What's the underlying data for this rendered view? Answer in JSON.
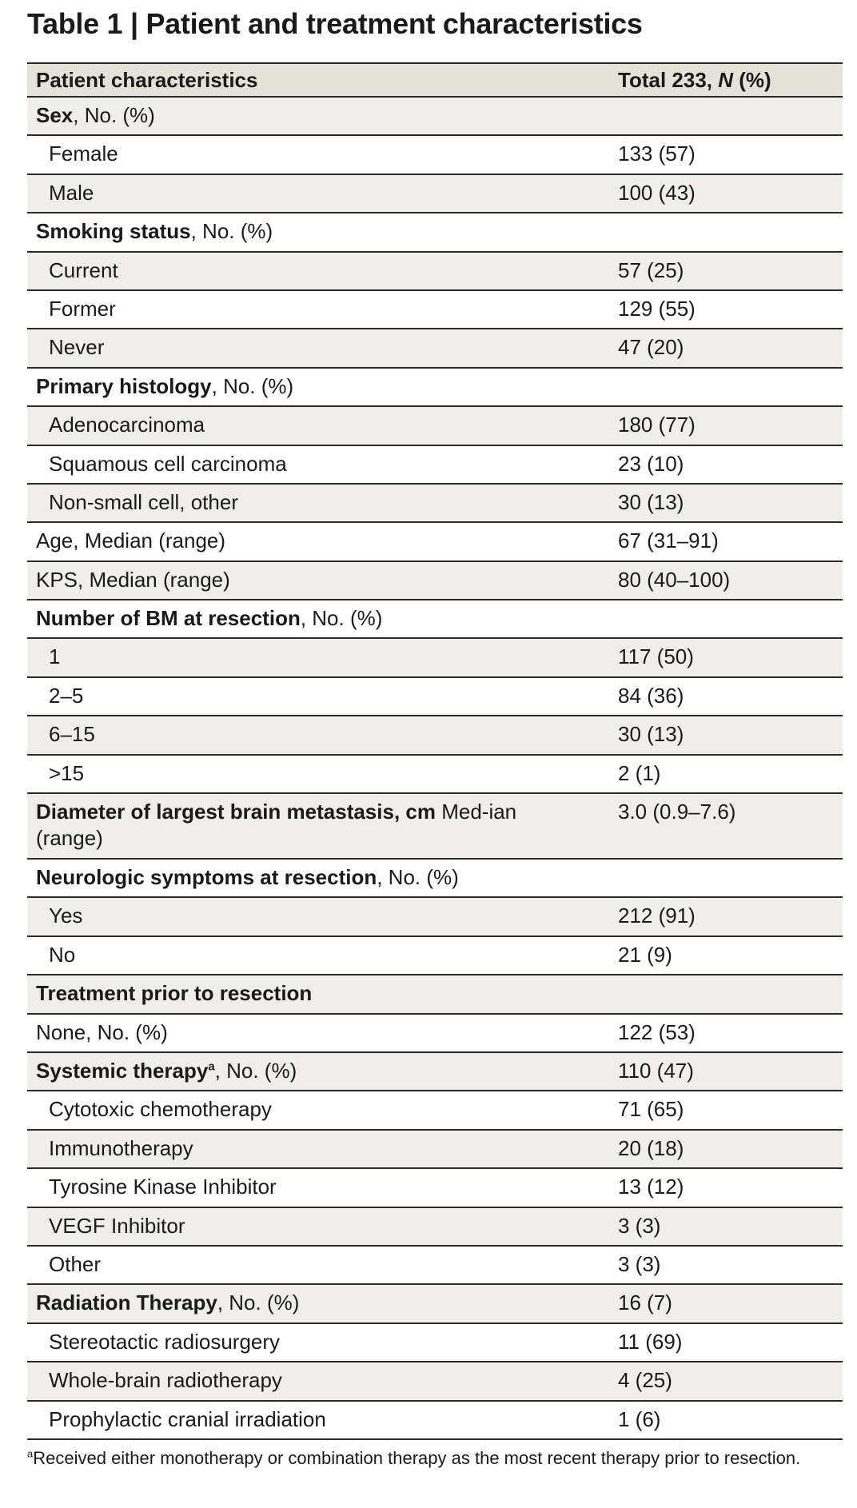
{
  "title": "Table 1 | Patient and treatment characteristics",
  "header": {
    "col1": "Patient characteristics",
    "col2_pre": "Total 233, ",
    "col2_italic": "N",
    "col2_post": " (%)"
  },
  "rows": [
    {
      "bold": "Sex",
      "text": ", No. (%)",
      "value": ""
    },
    {
      "text": "Female",
      "value": "133 (57)"
    },
    {
      "text": "Male",
      "value": "100 (43)"
    },
    {
      "bold": "Smoking status",
      "text": ", No. (%)",
      "value": ""
    },
    {
      "text": "Current",
      "value": "57 (25)"
    },
    {
      "text": "Former",
      "value": "129 (55)"
    },
    {
      "text": "Never",
      "value": "47 (20)"
    },
    {
      "bold": "Primary histology",
      "text": ", No. (%)",
      "value": ""
    },
    {
      "text": "Adenocarcinoma",
      "value": "180 (77)"
    },
    {
      "text": "Squamous cell carcinoma",
      "value": "23 (10)"
    },
    {
      "text": "Non-small cell, other",
      "value": "30 (13)"
    },
    {
      "text": "Age, Median (range)",
      "value": "67 (31–91)"
    },
    {
      "text": "KPS, Median (range)",
      "value": "80 (40–100)"
    },
    {
      "bold": "Number of BM at resection",
      "text": ", No. (%)",
      "value": ""
    },
    {
      "text": "1",
      "value": "117 (50)"
    },
    {
      "text": "2–5",
      "value": "84 (36)"
    },
    {
      "text": "6–15",
      "value": "30 (13)"
    },
    {
      "text": ">15",
      "value": "2 (1)"
    },
    {
      "bold": "Diameter of largest brain metastasis, cm",
      "text": " Med-ian (range)",
      "value": "3.0 (0.9–7.6)"
    },
    {
      "bold": "Neurologic symptoms at resection",
      "text": ", No. (%)",
      "value": ""
    },
    {
      "text": "Yes",
      "value": "212 (91)"
    },
    {
      "text": "No",
      "value": "21 (9)"
    },
    {
      "bold": "Treatment prior to resection",
      "text": "",
      "value": ""
    },
    {
      "text": "None, No. (%)",
      "value": "122 (53)"
    },
    {
      "bold": "Systemic therapy",
      "sup": "a",
      "text": ", No. (%)",
      "value": "110 (47)"
    },
    {
      "text": "Cytotoxic chemotherapy",
      "value": "71 (65)"
    },
    {
      "text": "Immunotherapy",
      "value": "20 (18)"
    },
    {
      "text": "Tyrosine Kinase Inhibitor",
      "value": "13 (12)"
    },
    {
      "text": "VEGF Inhibitor",
      "value": "3 (3)"
    },
    {
      "text": "Other",
      "value": "3 (3)"
    },
    {
      "bold": "Radiation Therapy",
      "text": ", No. (%)",
      "value": "16 (7)"
    },
    {
      "text": "Stereotactic radiosurgery",
      "value": "11 (69)"
    },
    {
      "text": "Whole-brain radiotherapy",
      "value": "4 (25)"
    },
    {
      "text": "Prophylactic cranial irradiation",
      "value": "1 (6)"
    }
  ],
  "footnote": {
    "sup": "a",
    "text": "Received either monotherapy or combination therapy as the most recent therapy prior to resection."
  }
}
